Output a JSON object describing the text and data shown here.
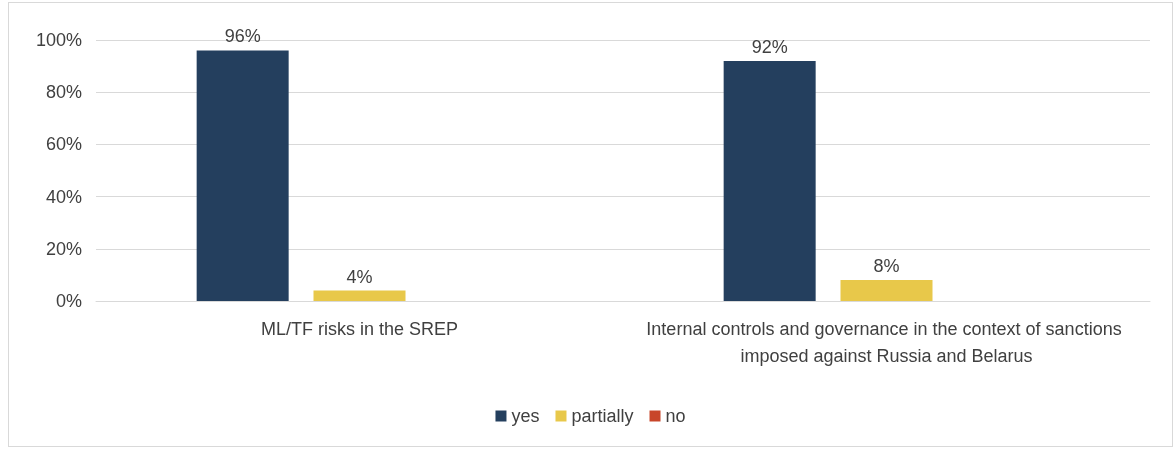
{
  "chart_data": {
    "type": "bar",
    "categories": [
      "ML/TF risks in the SREP",
      "Internal controls and governance in the context of sanctions imposed against Russia and Belarus"
    ],
    "series": [
      {
        "name": "yes",
        "color": "#243f5e",
        "values": [
          96,
          92
        ],
        "value_labels": [
          "96%",
          "92%"
        ]
      },
      {
        "name": "partially",
        "color": "#e8c84a",
        "values": [
          4,
          8
        ],
        "value_labels": [
          "4%",
          "8%"
        ]
      },
      {
        "name": "no",
        "color": "#c8462a",
        "values": [
          0,
          0
        ],
        "value_labels": [
          null,
          null
        ]
      }
    ],
    "ylim": [
      0,
      100
    ],
    "yticks": [
      {
        "value": 0,
        "label": "0%"
      },
      {
        "value": 20,
        "label": "20%"
      },
      {
        "value": 40,
        "label": "40%"
      },
      {
        "value": 60,
        "label": "60%"
      },
      {
        "value": 80,
        "label": "80%"
      },
      {
        "value": 100,
        "label": "100%"
      }
    ],
    "grid": "y",
    "legend": "bottom"
  }
}
